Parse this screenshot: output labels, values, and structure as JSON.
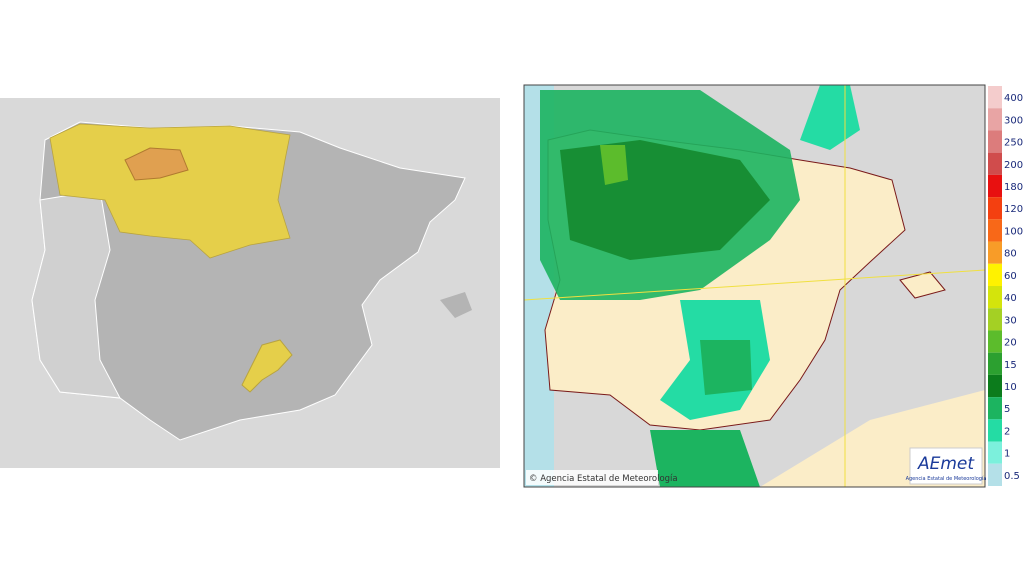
{
  "right_map": {
    "copyright": "© Agencia Estatal de Meteorología",
    "logo": {
      "name": "AEmet",
      "subtitle": "Agencia Estatal de Meteorología"
    }
  },
  "legend": [
    {
      "value": 400,
      "color": "#f4cccc"
    },
    {
      "value": 300,
      "color": "#e8a4a4"
    },
    {
      "value": 250,
      "color": "#dc7c7c"
    },
    {
      "value": 200,
      "color": "#d04c4c"
    },
    {
      "value": 180,
      "color": "#e81010"
    },
    {
      "value": 120,
      "color": "#f44010"
    },
    {
      "value": 100,
      "color": "#f86818"
    },
    {
      "value": 80,
      "color": "#f89c28"
    },
    {
      "value": 60,
      "color": "#fff200"
    },
    {
      "value": 40,
      "color": "#d4e40c"
    },
    {
      "value": 30,
      "color": "#a4d024"
    },
    {
      "value": 20,
      "color": "#5cbc2c"
    },
    {
      "value": 15,
      "color": "#2ca030"
    },
    {
      "value": 10,
      "color": "#0c7c1c"
    },
    {
      "value": 5,
      "color": "#1cb460"
    },
    {
      "value": 2,
      "color": "#24dca4"
    },
    {
      "value": 1,
      "color": "#7cf0dc"
    },
    {
      "value": 0.5,
      "color": "#b4e0e8"
    }
  ]
}
